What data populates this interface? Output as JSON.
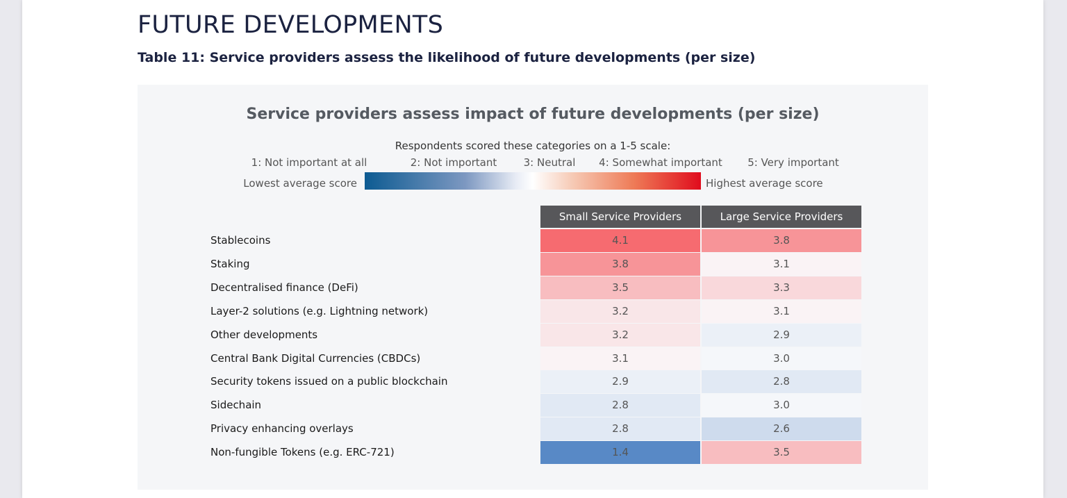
{
  "section_title": "FUTURE DEVELOPMENTS",
  "table_caption": "Table 11: Service providers assess the likelihood of future developments (per size)",
  "figure": {
    "title": "Service providers assess impact of future developments (per size)",
    "scale_note": "Respondents scored these categories on a 1-5 scale:",
    "scale_items": [
      {
        "label": "1: Not important at all",
        "center": 0
      },
      {
        "label": "2: Not important",
        "center": 1
      },
      {
        "label": "3: Neutral",
        "center": 2
      },
      {
        "label": "4: Somewhat important",
        "center": 3
      },
      {
        "label": "5: Very important",
        "center": 4
      }
    ],
    "low_label": "Lowest average score",
    "high_label": "Highest average score",
    "gradient_colors": [
      "#0d5b92",
      "#ffffff",
      "#e00c1d"
    ],
    "columns": [
      "Small Service Providers",
      "Large Service Providers"
    ],
    "header_color": "#57575a",
    "rows": [
      {
        "label": "Stablecoins",
        "small": "4.1",
        "large": "3.8"
      },
      {
        "label": "Staking",
        "small": "3.8",
        "large": "3.1"
      },
      {
        "label": "Decentralised finance (DeFi)",
        "small": "3.5",
        "large": "3.3"
      },
      {
        "label": "Layer-2 solutions (e.g. Lightning network)",
        "small": "3.2",
        "large": "3.1"
      },
      {
        "label": "Other developments",
        "small": "3.2",
        "large": "2.9"
      },
      {
        "label": "Central Bank Digital Currencies (CBDCs)",
        "small": "3.1",
        "large": "3.0"
      },
      {
        "label": "Security tokens issued on a public blockchain",
        "small": "2.9",
        "large": "2.8"
      },
      {
        "label": "Sidechain",
        "small": "2.8",
        "large": "3.0"
      },
      {
        "label": "Privacy enhancing overlays",
        "small": "2.8",
        "large": "2.6"
      },
      {
        "label": "Non-fungible Tokens (e.g. ERC-721)",
        "small": "1.4",
        "large": "3.5"
      }
    ]
  },
  "chart_data": {
    "type": "heatmap",
    "title": "Service providers assess impact of future developments (per size)",
    "x": [
      "Small Service Providers",
      "Large Service Providers"
    ],
    "y": [
      "Stablecoins",
      "Staking",
      "Decentralised finance (DeFi)",
      "Layer-2 solutions (e.g. Lightning network)",
      "Other developments",
      "Central Bank Digital Currencies (CBDCs)",
      "Security tokens issued on a public blockchain",
      "Sidechain",
      "Privacy enhancing overlays",
      "Non-fungible Tokens (e.g. ERC-721)"
    ],
    "values": [
      [
        4.1,
        3.8
      ],
      [
        3.8,
        3.1
      ],
      [
        3.5,
        3.3
      ],
      [
        3.2,
        3.1
      ],
      [
        3.2,
        2.9
      ],
      [
        3.1,
        3.0
      ],
      [
        2.9,
        2.8
      ],
      [
        2.8,
        3.0
      ],
      [
        2.8,
        2.6
      ],
      [
        1.4,
        3.5
      ]
    ],
    "scale": [
      1,
      5
    ]
  }
}
